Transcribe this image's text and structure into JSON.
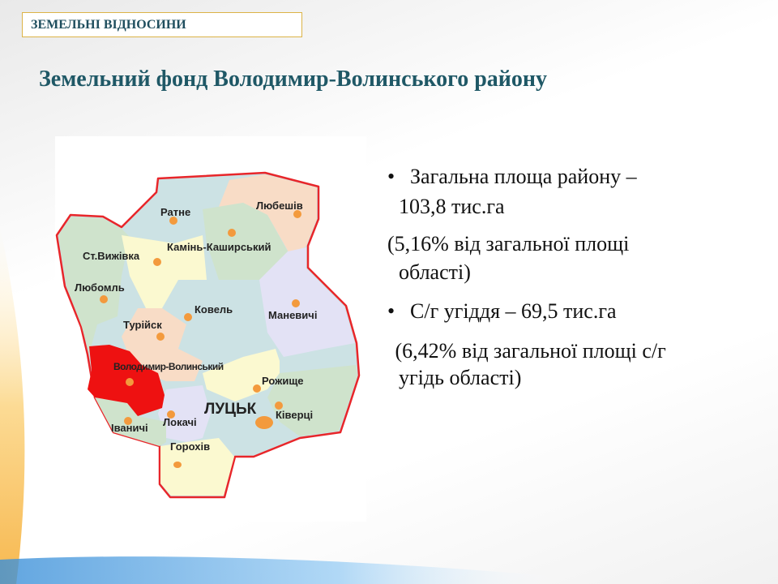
{
  "header": {
    "section_label": "ЗЕМЕЛЬНІ ВІДНОСИНИ"
  },
  "slide": {
    "title": "Земельний фонд Володимир-Волинського району"
  },
  "map": {
    "highlight_color": "#ee1111",
    "labels": {
      "ratne": "Ратне",
      "liubeshiv": "Любешів",
      "kamin": "Камінь-Каширський",
      "vyzhivka": "Ст.Вижівка",
      "liuboml": "Любомль",
      "kovel": "Ковель",
      "manevychi": "Маневичі",
      "turiisk": "Турійск",
      "volodymyr": "Володимир-Волинський",
      "rozhyshche": "Рожище",
      "lutsk": "ЛУЦЬК",
      "kivertsi": "Ківерці",
      "lokachi": "Локачі",
      "ivanychi": "Іваничі",
      "horokhiv": "Горохів"
    }
  },
  "content": {
    "bullet_char": "•",
    "item1_line1": "Загальна площа району –",
    "item1_line2": "103,8 тис.га",
    "note1_line1": "(5,16% від загальної площі",
    "note1_line2": "області)",
    "item2": "С/г угіддя – 69,5 тис.га",
    "note2_line1": " (6,42% від загальної площі с/г",
    "note2_line2": "угідь області)"
  }
}
